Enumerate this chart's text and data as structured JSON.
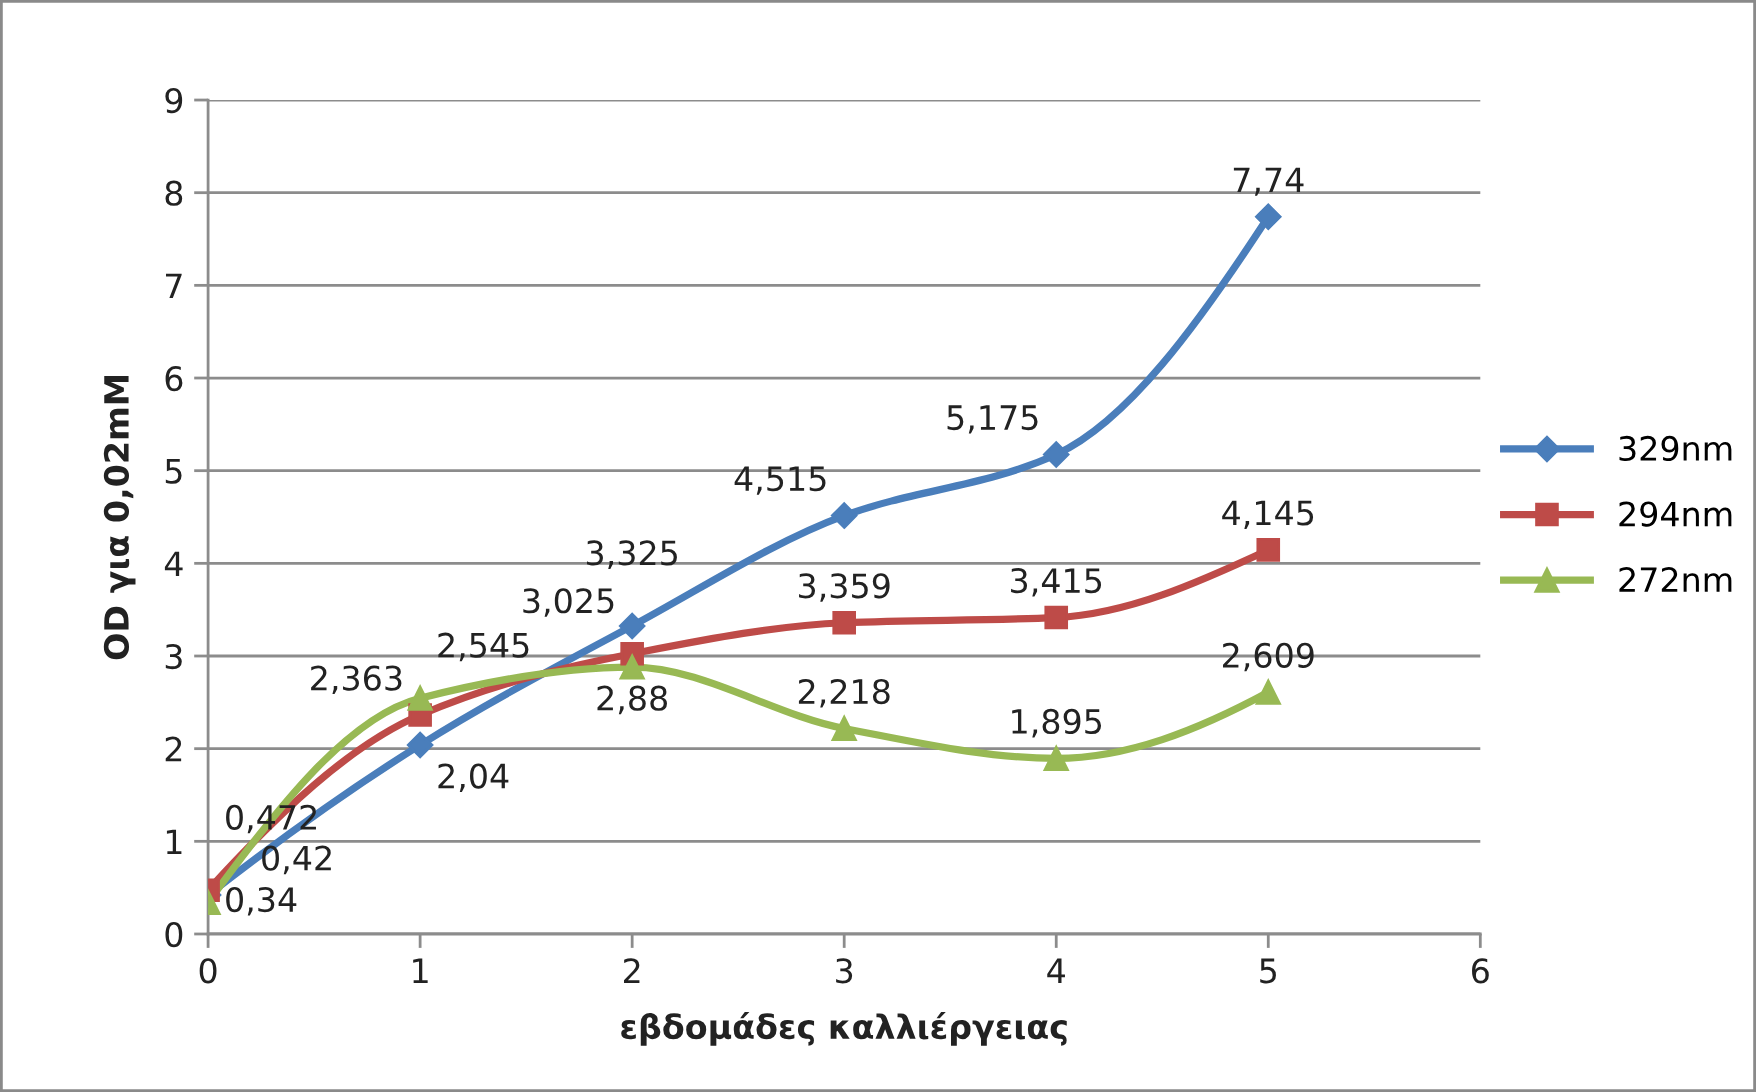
{
  "chart_data": {
    "type": "line",
    "xlabel": "εβδομάδες καλλιέργειας",
    "ylabel": "OD για 0,02mM",
    "x": [
      0,
      1,
      2,
      3,
      4,
      5
    ],
    "xlim": [
      0,
      6
    ],
    "xticks": [
      0,
      1,
      2,
      3,
      4,
      5,
      6
    ],
    "ylim": [
      0,
      9
    ],
    "yticks": [
      0,
      1,
      2,
      3,
      4,
      5,
      6,
      7,
      8,
      9
    ],
    "grid": "y",
    "legend": "right",
    "line_style": "solid",
    "series": [
      {
        "name": "329nm",
        "color": "#4a7ebb",
        "marker": "diamond",
        "values": [
          0.42,
          2.04,
          3.325,
          4.515,
          5.175,
          7.74
        ],
        "value_labels": [
          "0,42",
          "2,04",
          "3,325",
          "4,515",
          "5,175",
          "7,74"
        ]
      },
      {
        "name": "294nm",
        "color": "#be4b48",
        "marker": "square",
        "values": [
          0.472,
          2.363,
          3.025,
          3.359,
          3.415,
          4.145
        ],
        "value_labels": [
          "0,472",
          "2,363",
          "3,025",
          "3,359",
          "3,415",
          "4,145"
        ]
      },
      {
        "name": "272nm",
        "color": "#98b954",
        "marker": "triangle",
        "values": [
          0.34,
          2.545,
          2.88,
          2.218,
          1.895,
          2.609
        ],
        "value_labels": [
          "0,34",
          "2,545",
          "2,88",
          "2,218",
          "1,895",
          "2,609"
        ]
      }
    ]
  }
}
